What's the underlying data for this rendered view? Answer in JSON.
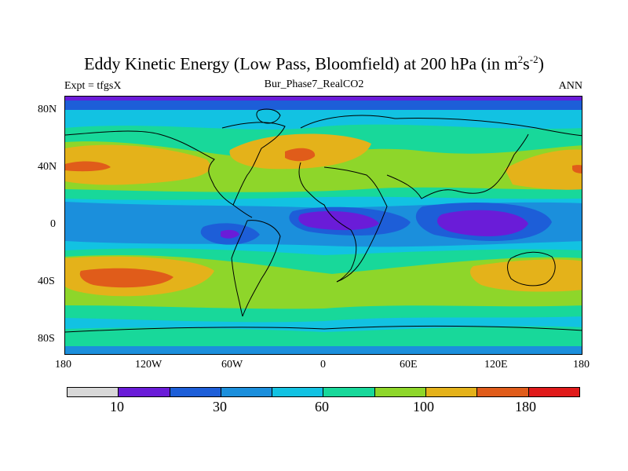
{
  "title_main": "Eddy Kinetic Energy (Low Pass, Bloomfield) at 200 hPa (in m",
  "title_sup1": "2",
  "title_mid": "s",
  "title_sup2": "-2",
  "title_end": ")",
  "subtitle": "Bur_Phase7_RealCO2",
  "left_string": "Expt = tfgsX",
  "right_string": "ANN",
  "lat_labels": [
    "80N",
    "40N",
    "0",
    "40S",
    "80S"
  ],
  "lon_labels": [
    "180",
    "120W",
    "60W",
    "0",
    "60E",
    "120E",
    "180"
  ],
  "colorbar": {
    "colors": [
      "#d8d8d8",
      "#6a1cd8",
      "#1d5ed8",
      "#1b8fdc",
      "#12c2e2",
      "#18d89a",
      "#8ed62a",
      "#e4b21a",
      "#e05c1a",
      "#e01a1a"
    ],
    "labels": [
      "10",
      "30",
      "60",
      "100",
      "180"
    ]
  },
  "map": {
    "projection": "cylindrical-equidistant",
    "lon_range": [
      -180,
      180
    ],
    "lat_range": [
      -90,
      90
    ]
  }
}
